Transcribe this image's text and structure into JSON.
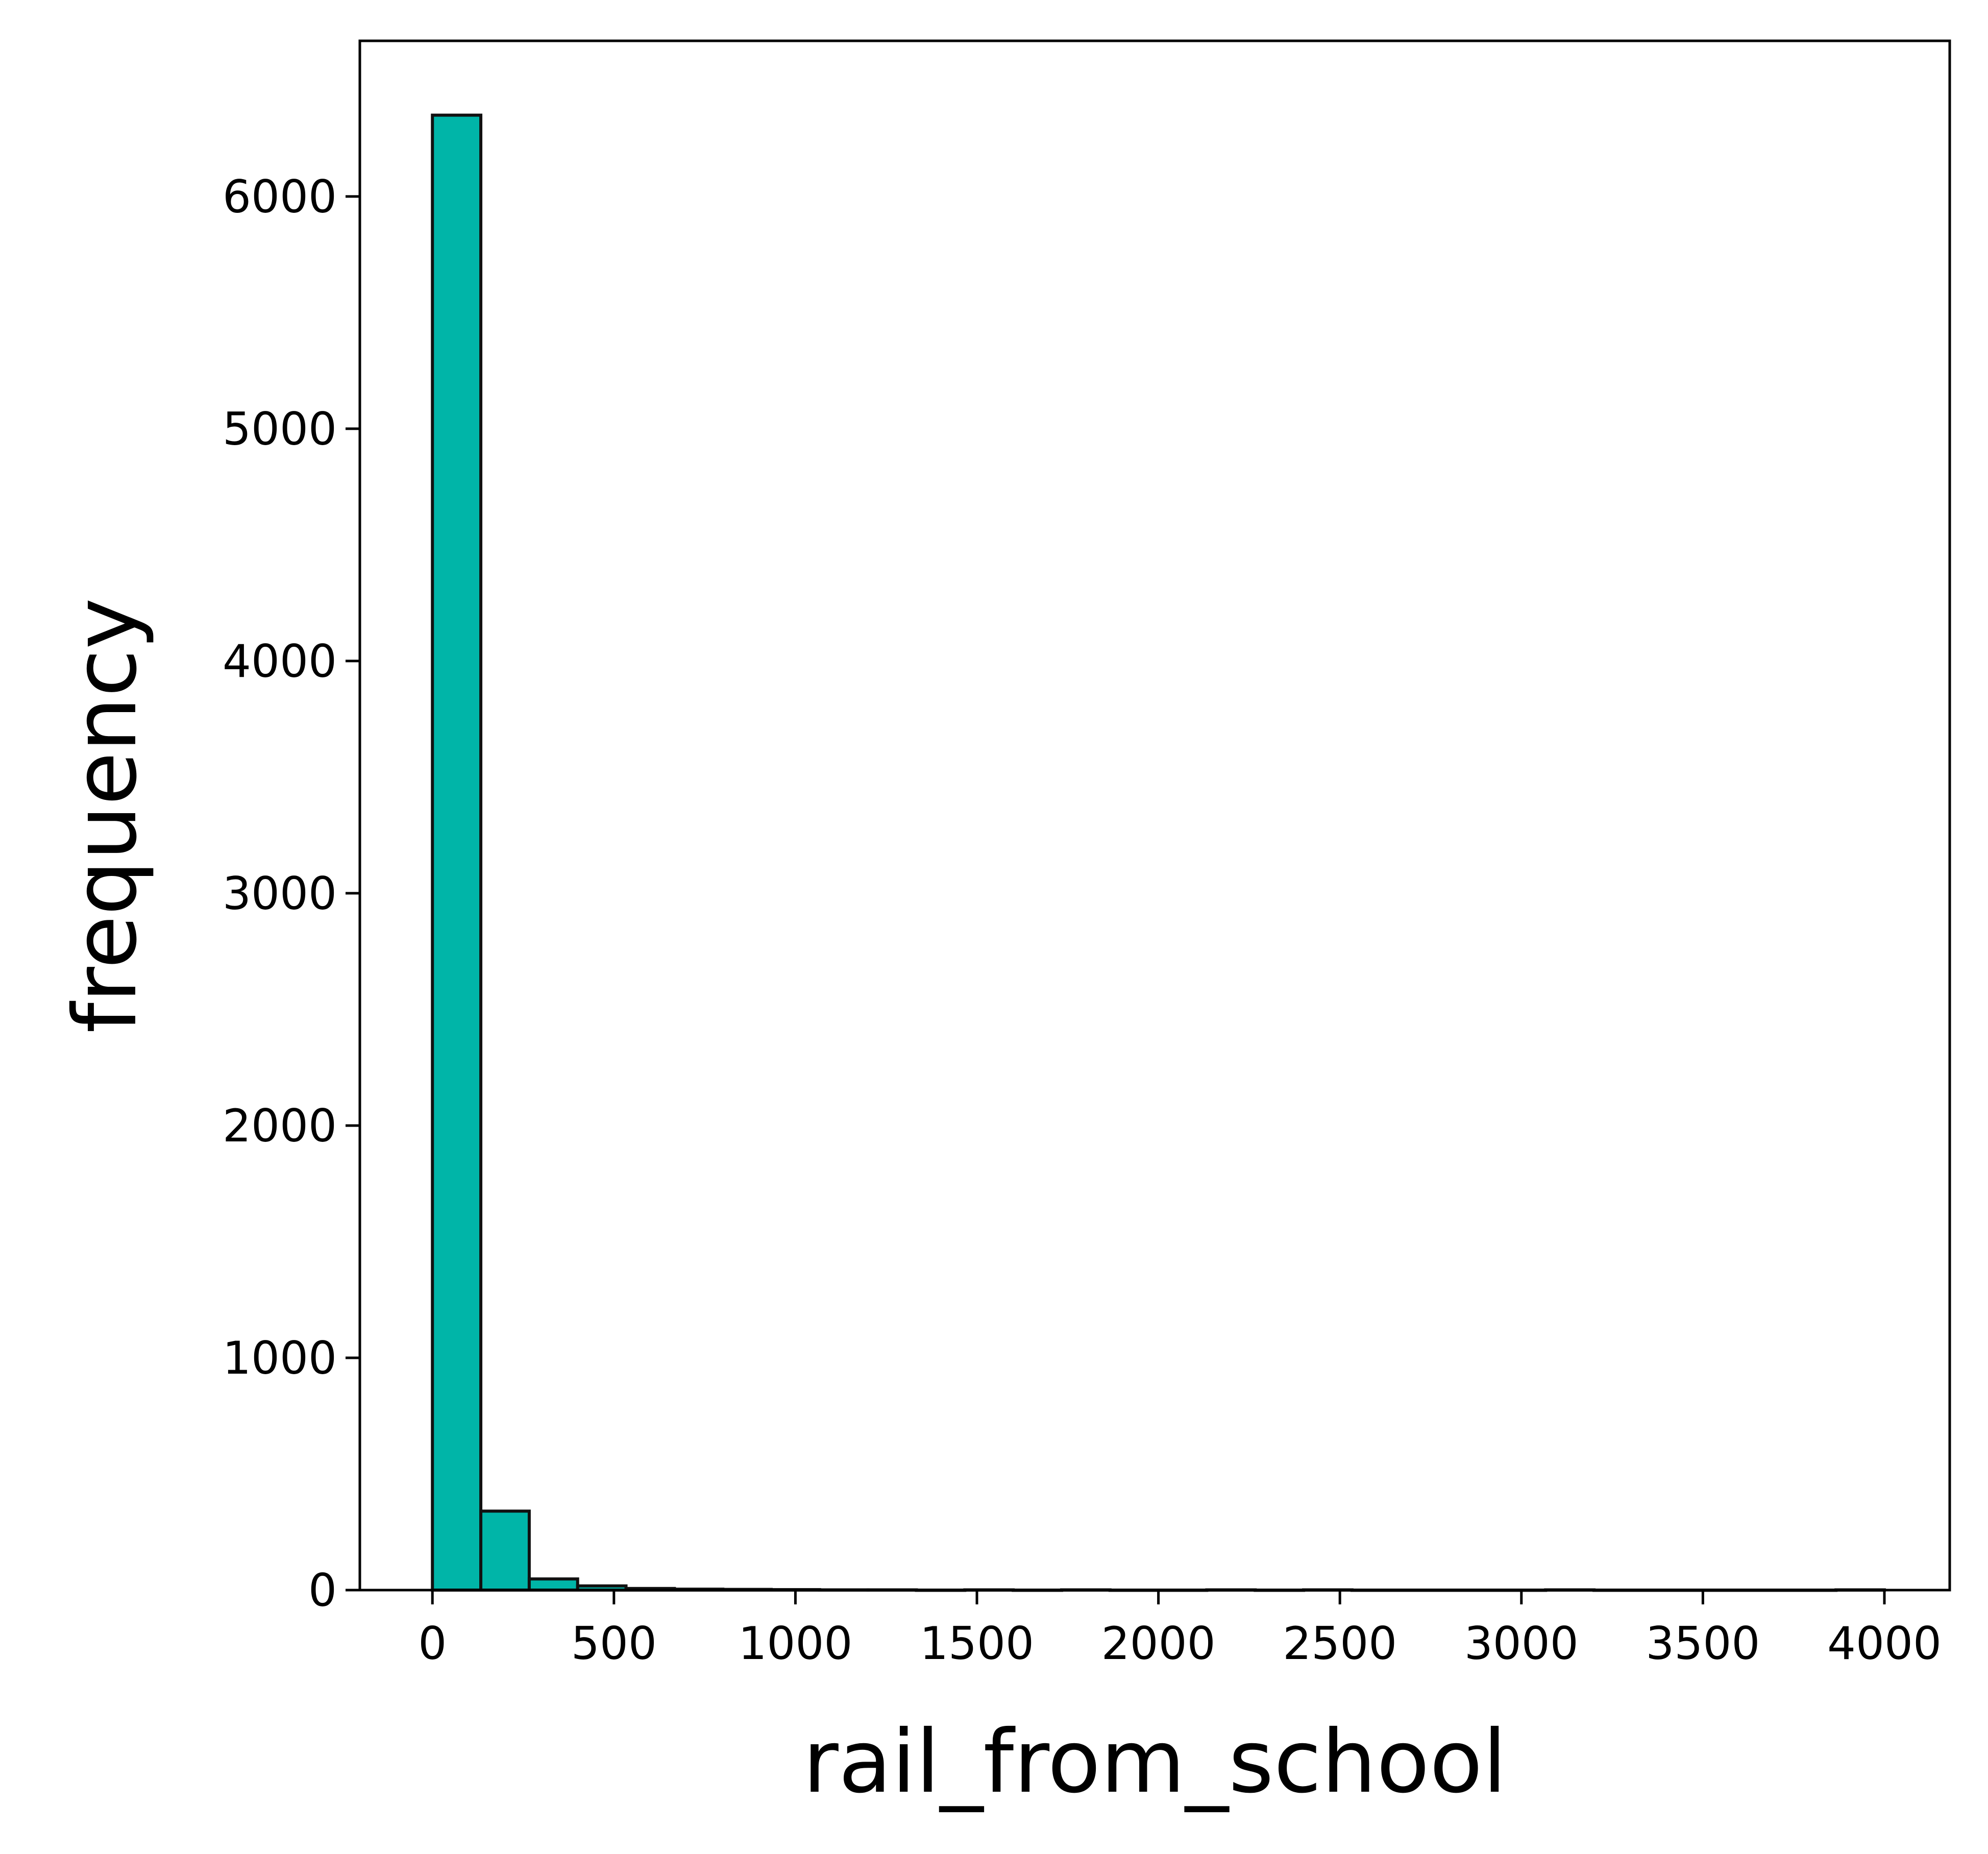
{
  "chart_data": {
    "type": "bar",
    "title": "",
    "xlabel": "rail_from_school",
    "ylabel": "frequency",
    "xlim": [
      -200,
      4180
    ],
    "ylim": [
      0,
      6670
    ],
    "xticks": [
      0,
      500,
      1000,
      1500,
      2000,
      2500,
      3000,
      3500,
      4000
    ],
    "yticks": [
      0,
      1000,
      2000,
      3000,
      4000,
      5000,
      6000
    ],
    "grid": false,
    "bin_width": 133.3,
    "bins": [
      {
        "x0": 0,
        "x1": 133.3,
        "count": 6350
      },
      {
        "x0": 133.3,
        "x1": 266.7,
        "count": 340
      },
      {
        "x0": 266.7,
        "x1": 400,
        "count": 48
      },
      {
        "x0": 400,
        "x1": 533.3,
        "count": 18
      },
      {
        "x0": 533.3,
        "x1": 666.7,
        "count": 7
      },
      {
        "x0": 666.7,
        "x1": 800,
        "count": 4
      },
      {
        "x0": 800,
        "x1": 933.3,
        "count": 3
      },
      {
        "x0": 933.3,
        "x1": 1066.7,
        "count": 2
      },
      {
        "x0": 1066.7,
        "x1": 1200,
        "count": 1
      },
      {
        "x0": 1200,
        "x1": 1333.3,
        "count": 1
      },
      {
        "x0": 1333.3,
        "x1": 1466.7,
        "count": 0
      },
      {
        "x0": 1466.7,
        "x1": 1600,
        "count": 1
      },
      {
        "x0": 1600,
        "x1": 1733.3,
        "count": 0
      },
      {
        "x0": 1733.3,
        "x1": 1866.7,
        "count": 1
      },
      {
        "x0": 1866.7,
        "x1": 2000,
        "count": 0
      },
      {
        "x0": 2000,
        "x1": 2133.3,
        "count": 0
      },
      {
        "x0": 2133.3,
        "x1": 2266.7,
        "count": 1
      },
      {
        "x0": 2266.7,
        "x1": 2400,
        "count": 0
      },
      {
        "x0": 2400,
        "x1": 2533.3,
        "count": 1
      },
      {
        "x0": 2533.3,
        "x1": 2666.7,
        "count": 0
      },
      {
        "x0": 2666.7,
        "x1": 2800,
        "count": 0
      },
      {
        "x0": 2800,
        "x1": 2933.3,
        "count": 0
      },
      {
        "x0": 2933.3,
        "x1": 3066.7,
        "count": 0
      },
      {
        "x0": 3066.7,
        "x1": 3200,
        "count": 1
      },
      {
        "x0": 3200,
        "x1": 3333.3,
        "count": 0
      },
      {
        "x0": 3333.3,
        "x1": 3466.7,
        "count": 0
      },
      {
        "x0": 3466.7,
        "x1": 3600,
        "count": 0
      },
      {
        "x0": 3600,
        "x1": 3733.3,
        "count": 0
      },
      {
        "x0": 3733.3,
        "x1": 3866.7,
        "count": 0
      },
      {
        "x0": 3866.7,
        "x1": 4000,
        "count": 1
      }
    ],
    "colors": {
      "bar_fill": "#00b5a8",
      "bar_edge": "#111111",
      "axis": "#000000"
    }
  }
}
